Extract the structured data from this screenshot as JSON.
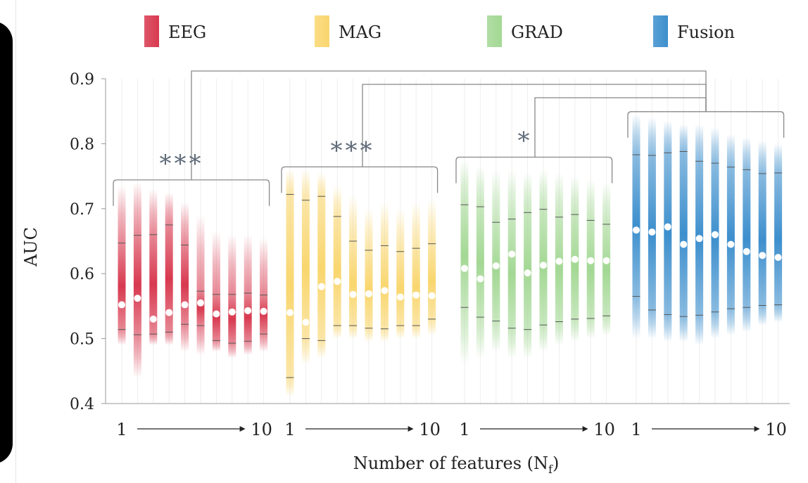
{
  "chart_data": {
    "type": "box",
    "ylabel": "AUC",
    "xlabel_main": "Number of features (N",
    "xlabel_sub": "f",
    "xlabel_close": ")",
    "ylim": [
      0.4,
      0.9
    ],
    "yticks": [
      0.4,
      0.5,
      0.6,
      0.7,
      0.8,
      0.9
    ],
    "ytick_labels": [
      "0.4",
      "0.5",
      "0.6",
      "0.7",
      "0.8",
      "0.9"
    ],
    "legend_position": "top",
    "x_start_label": "1",
    "x_end_label": "10",
    "groups": [
      {
        "name": "EEG",
        "color": "#d8394f",
        "median": [
          0.552,
          0.562,
          0.53,
          0.54,
          0.552,
          0.555,
          0.538,
          0.541,
          0.543,
          0.542
        ],
        "q_low": [
          0.514,
          0.506,
          0.507,
          0.51,
          0.522,
          0.52,
          0.497,
          0.493,
          0.496,
          0.507
        ],
        "q_high": [
          0.647,
          0.659,
          0.66,
          0.675,
          0.644,
          0.573,
          0.568,
          0.568,
          0.57,
          0.567
        ],
        "w_low": [
          0.49,
          0.44,
          0.49,
          0.49,
          0.48,
          0.475,
          0.48,
          0.47,
          0.475,
          0.48
        ],
        "w_high": [
          0.735,
          0.74,
          0.73,
          0.725,
          0.71,
          0.69,
          0.665,
          0.66,
          0.66,
          0.655
        ]
      },
      {
        "name": "MAG",
        "color": "#f9d66e",
        "median": [
          0.54,
          0.525,
          0.58,
          0.588,
          0.568,
          0.569,
          0.574,
          0.564,
          0.567,
          0.566
        ],
        "q_low": [
          0.44,
          0.5,
          0.497,
          0.52,
          0.52,
          0.516,
          0.515,
          0.52,
          0.52,
          0.53
        ],
        "q_high": [
          0.722,
          0.713,
          0.719,
          0.688,
          0.65,
          0.636,
          0.643,
          0.634,
          0.639,
          0.646
        ],
        "w_low": [
          0.41,
          0.46,
          0.47,
          0.5,
          0.5,
          0.495,
          0.495,
          0.5,
          0.5,
          0.505
        ],
        "w_high": [
          0.76,
          0.76,
          0.755,
          0.735,
          0.72,
          0.7,
          0.71,
          0.7,
          0.71,
          0.715
        ]
      },
      {
        "name": "GRAD",
        "color": "#a3d894",
        "median": [
          0.608,
          0.592,
          0.612,
          0.63,
          0.601,
          0.613,
          0.619,
          0.622,
          0.62,
          0.62
        ],
        "q_low": [
          0.548,
          0.533,
          0.527,
          0.516,
          0.514,
          0.521,
          0.526,
          0.53,
          0.531,
          0.535
        ],
        "q_high": [
          0.706,
          0.703,
          0.679,
          0.684,
          0.694,
          0.699,
          0.687,
          0.691,
          0.682,
          0.676
        ],
        "w_low": [
          0.46,
          0.47,
          0.48,
          0.47,
          0.47,
          0.48,
          0.49,
          0.495,
          0.5,
          0.505
        ],
        "w_high": [
          0.775,
          0.765,
          0.76,
          0.76,
          0.755,
          0.76,
          0.755,
          0.75,
          0.745,
          0.74
        ]
      },
      {
        "name": "Fusion",
        "color": "#3d8fcd",
        "median": [
          0.667,
          0.664,
          0.672,
          0.645,
          0.654,
          0.66,
          0.645,
          0.634,
          0.628,
          0.625
        ],
        "q_low": [
          0.565,
          0.544,
          0.537,
          0.534,
          0.536,
          0.541,
          0.546,
          0.548,
          0.551,
          0.552
        ],
        "q_high": [
          0.783,
          0.782,
          0.786,
          0.788,
          0.773,
          0.77,
          0.764,
          0.76,
          0.754,
          0.755
        ],
        "w_low": [
          0.5,
          0.5,
          0.495,
          0.495,
          0.49,
          0.5,
          0.505,
          0.51,
          0.52,
          0.525
        ],
        "w_high": [
          0.845,
          0.84,
          0.835,
          0.83,
          0.83,
          0.825,
          0.815,
          0.81,
          0.805,
          0.8
        ]
      }
    ],
    "annotations": [
      {
        "group": 0,
        "label": "***"
      },
      {
        "group": 1,
        "label": "***"
      },
      {
        "group": 2,
        "label": "*"
      }
    ]
  }
}
